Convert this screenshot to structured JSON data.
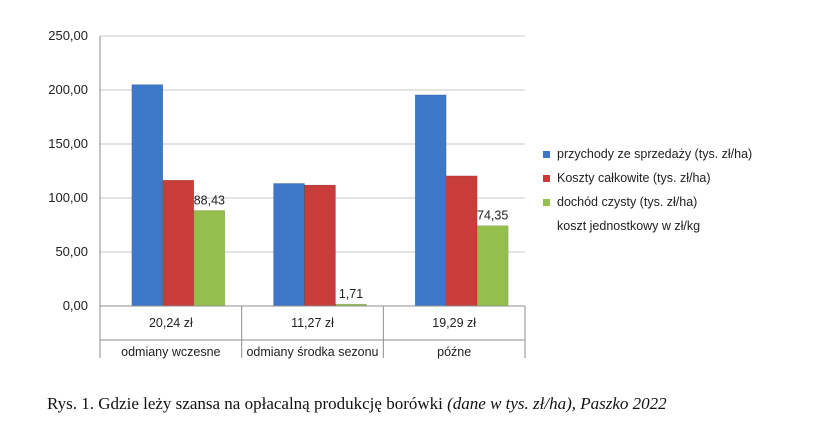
{
  "chart_data": {
    "type": "bar",
    "categories": [
      "odmiany wczesne",
      "odmiany środka sezonu",
      "późne"
    ],
    "unit_cost_row": {
      "label": "koszt jednostkowy w zł/kg",
      "values": [
        "20,24 zł",
        "11,27 zł",
        "19,29 zł"
      ]
    },
    "series": [
      {
        "name": "przychody ze sprzedaży (tys. zł/ha)",
        "values": [
          205,
          113.5,
          195.5
        ],
        "color": "#3d78c8",
        "labels": [
          "",
          "",
          ""
        ]
      },
      {
        "name": "Koszty całkowite (tys. zł/ha)",
        "values": [
          116.5,
          112,
          120.5
        ],
        "color": "#c83c3a",
        "labels": [
          "",
          "",
          ""
        ]
      },
      {
        "name": "dochód czysty (tys. zł/ha)",
        "values": [
          88.43,
          1.71,
          74.35
        ],
        "color": "#94bf4d",
        "labels": [
          "88,43",
          "1,71",
          "74,35"
        ]
      }
    ],
    "ylim": [
      0,
      250
    ],
    "yticks": [
      "0,00",
      "50,00",
      "100,00",
      "150,00",
      "200,00",
      "250,00"
    ],
    "grid": true,
    "legend_position": "right"
  },
  "caption": {
    "main": "Rys. 1. Gdzie leży szansa na opłacalną produkcję borówki ",
    "italic": "(dane w tys. zł/ha), Paszko 2022"
  }
}
